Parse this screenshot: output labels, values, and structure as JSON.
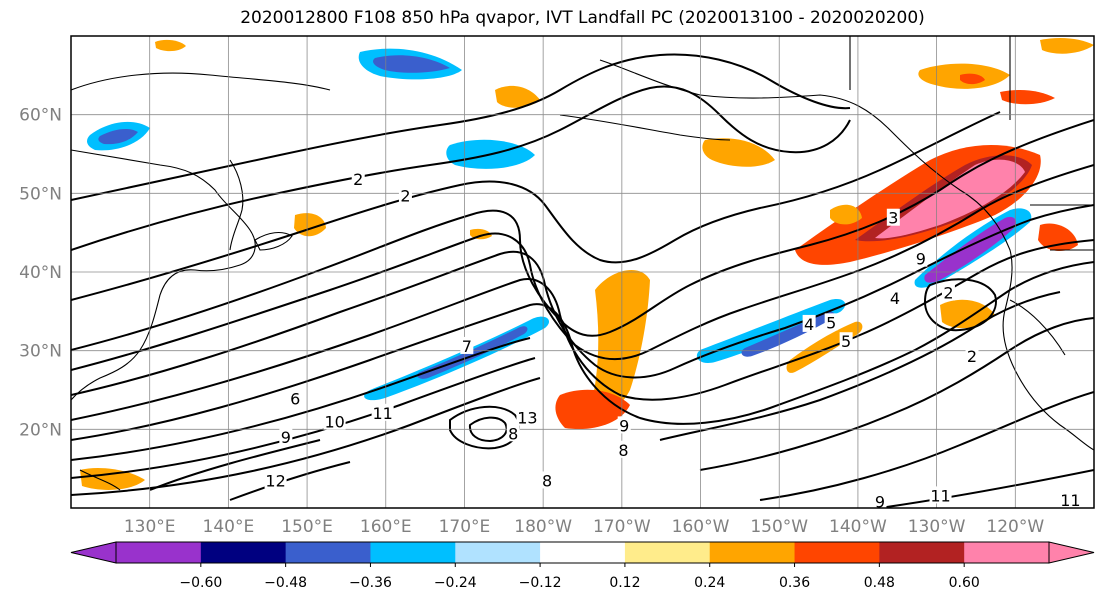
{
  "title": "2020012800 F108 850 hPa qvapor, IVT Landfall PC (2020013100 - 2020020200)",
  "map": {
    "projection": "cylindrical (lon/lat)",
    "lon_range": [
      120,
      250
    ],
    "lat_range": [
      10,
      70
    ],
    "lat_ticks": [
      {
        "lat": 60,
        "label": "60°N"
      },
      {
        "lat": 50,
        "label": "50°N"
      },
      {
        "lat": 40,
        "label": "40°N"
      },
      {
        "lat": 30,
        "label": "30°N"
      },
      {
        "lat": 20,
        "label": "20°N"
      }
    ],
    "lon_ticks": [
      {
        "lon": 130,
        "label": "130°E"
      },
      {
        "lon": 140,
        "label": "140°E"
      },
      {
        "lon": 150,
        "label": "150°E"
      },
      {
        "lon": 160,
        "label": "160°E"
      },
      {
        "lon": 170,
        "label": "170°E"
      },
      {
        "lon": 180,
        "label": "180°W"
      },
      {
        "lon": 190,
        "label": "170°W"
      },
      {
        "lon": 200,
        "label": "160°W"
      },
      {
        "lon": 210,
        "label": "150°W"
      },
      {
        "lon": 220,
        "label": "140°W"
      },
      {
        "lon": 230,
        "label": "130°W"
      },
      {
        "lon": 240,
        "label": "120°W"
      }
    ],
    "gridlines": true,
    "tick_label_color": "#808080"
  },
  "colorbar": {
    "orientation": "horizontal",
    "extend": "both",
    "boundaries": [
      -0.72,
      -0.6,
      -0.48,
      -0.36,
      -0.24,
      -0.12,
      0.12,
      0.24,
      0.36,
      0.48,
      0.6,
      0.72
    ],
    "colors": [
      "#9932CC",
      "#000080",
      "#3A5FCD",
      "#00BFFF",
      "#B0E2FF",
      "#FFFFFF",
      "#FFEC8B",
      "#FFA500",
      "#FF4500",
      "#B22222",
      "#FF82AB"
    ],
    "tick_labels": [
      "−0.60",
      "−0.48",
      "−0.36",
      "−0.24",
      "−0.12",
      "0.12",
      "0.24",
      "0.36",
      "0.48",
      "0.60"
    ]
  },
  "contour_labels": [
    {
      "text": "2",
      "lon": 156.5,
      "lat": 51.8
    },
    {
      "text": "2",
      "lon": 162.5,
      "lat": 49.7
    },
    {
      "text": "2",
      "lon": 231.5,
      "lat": 37.4
    },
    {
      "text": "2",
      "lon": 234.5,
      "lat": 29.3
    },
    {
      "text": "3",
      "lon": 224.5,
      "lat": 46.9
    },
    {
      "text": "4",
      "lon": 213.8,
      "lat": 33.4
    },
    {
      "text": "4",
      "lon": 224.7,
      "lat": 36.7
    },
    {
      "text": "5",
      "lon": 216.6,
      "lat": 33.6
    },
    {
      "text": "5",
      "lon": 218.5,
      "lat": 31.2
    },
    {
      "text": "6",
      "lon": 148.5,
      "lat": 23.9
    },
    {
      "text": "7",
      "lon": 170.3,
      "lat": 30.6
    },
    {
      "text": "8",
      "lon": 176.2,
      "lat": 19.5
    },
    {
      "text": "8",
      "lon": 180.5,
      "lat": 13.5
    },
    {
      "text": "8",
      "lon": 190.2,
      "lat": 17.4
    },
    {
      "text": "9",
      "lon": 147.3,
      "lat": 19.0
    },
    {
      "text": "9",
      "lon": 190.3,
      "lat": 20.5
    },
    {
      "text": "9",
      "lon": 228.0,
      "lat": 41.7
    },
    {
      "text": "9",
      "lon": 222.8,
      "lat": 10.8
    },
    {
      "text": "10",
      "lon": 153.5,
      "lat": 21.0
    },
    {
      "text": "11",
      "lon": 159.6,
      "lat": 22.1
    },
    {
      "text": "11",
      "lon": 230.5,
      "lat": 11.6
    },
    {
      "text": "11",
      "lon": 247.0,
      "lat": 11.0
    },
    {
      "text": "12",
      "lon": 146.0,
      "lat": 13.5
    },
    {
      "text": "13",
      "lon": 178.0,
      "lat": 21.5
    }
  ]
}
